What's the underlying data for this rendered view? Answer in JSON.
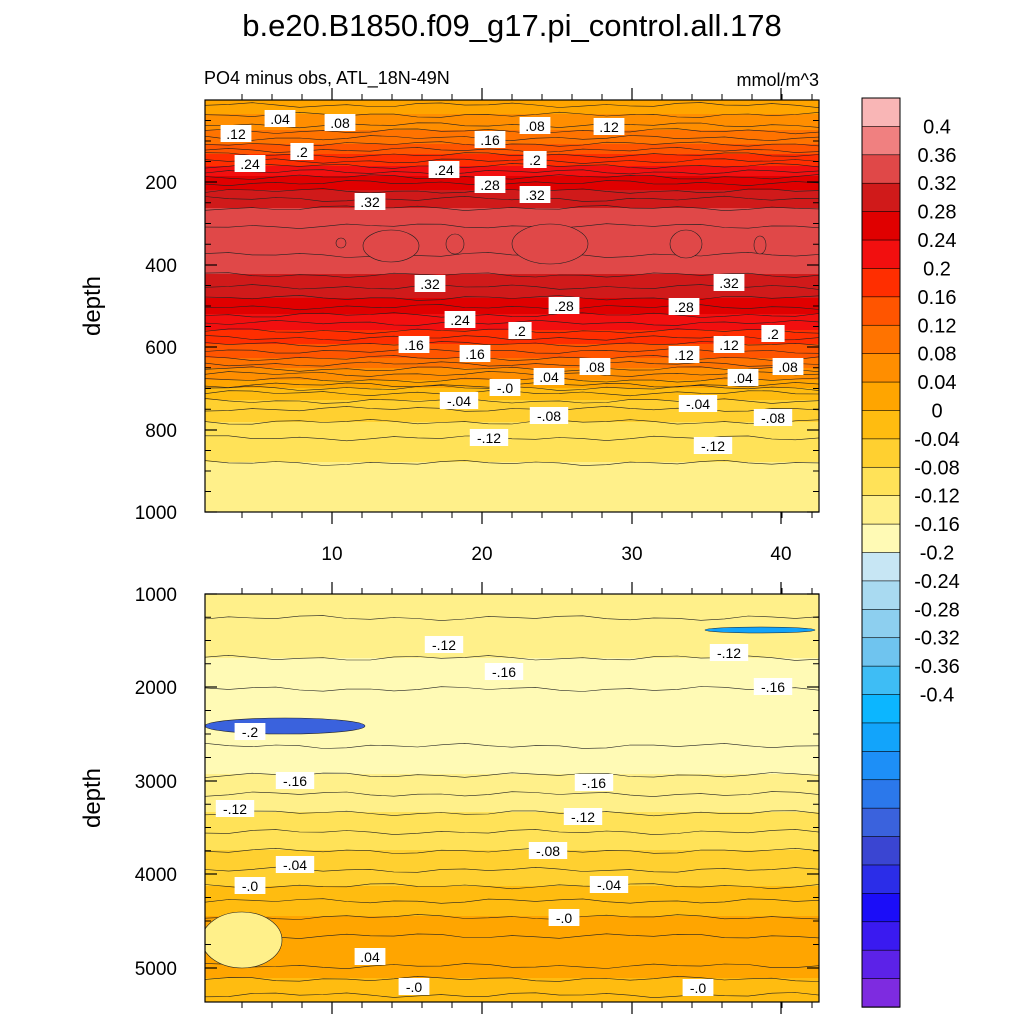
{
  "title": "b.e20.B1850.f09_g17.pi_control.all.178",
  "chart_data": [
    {
      "type": "heatmap",
      "panel": "upper",
      "subtitle_left": "PO4 minus obs, ATL_18N-49N",
      "subtitle_right": "mmol/m^3",
      "xlabel": "",
      "ylabel": "depth",
      "xlim": [
        1,
        43
      ],
      "ylim": [
        1000,
        0
      ],
      "xticks": [
        "10",
        "20",
        "30",
        "40"
      ],
      "yticks": [
        "200",
        "400",
        "600",
        "800",
        "1000"
      ],
      "depth_profile": [
        {
          "depth": 0,
          "value": 0.01
        },
        {
          "depth": 60,
          "value": 0.06
        },
        {
          "depth": 120,
          "value": 0.14
        },
        {
          "depth": 200,
          "value": 0.26
        },
        {
          "depth": 270,
          "value": 0.33
        },
        {
          "depth": 340,
          "value": 0.35
        },
        {
          "depth": 410,
          "value": 0.33
        },
        {
          "depth": 480,
          "value": 0.28
        },
        {
          "depth": 560,
          "value": 0.2
        },
        {
          "depth": 640,
          "value": 0.1
        },
        {
          "depth": 690,
          "value": 0.02
        },
        {
          "depth": 700,
          "value": -0.01
        },
        {
          "depth": 760,
          "value": -0.07
        },
        {
          "depth": 840,
          "value": -0.11
        },
        {
          "depth": 920,
          "value": -0.13
        },
        {
          "depth": 1000,
          "value": -0.13
        }
      ],
      "contour_labels": [
        ".04",
        ".12",
        ".08",
        ".16",
        ".08",
        ".12",
        ".24",
        ".2",
        ".24",
        ".2",
        ".28",
        ".32",
        ".32",
        ".32",
        ".32",
        ".28",
        ".28",
        ".24",
        ".2",
        ".2",
        ".16",
        ".12",
        ".16",
        ".12",
        ".08",
        ".08",
        ".04",
        ".04",
        "-.0",
        "-.04",
        "-.08",
        "-.04",
        "-.08",
        "-.12",
        "-.12"
      ]
    },
    {
      "type": "heatmap",
      "panel": "lower",
      "xlabel": "",
      "ylabel": "depth",
      "ylim": [
        5300,
        1000
      ],
      "yticks": [
        "1000",
        "2000",
        "3000",
        "4000",
        "5000"
      ],
      "depth_profile": [
        {
          "depth": 1000,
          "value": -0.13
        },
        {
          "depth": 1500,
          "value": -0.15
        },
        {
          "depth": 2000,
          "value": -0.18
        },
        {
          "depth": 2400,
          "value": -0.19
        },
        {
          "depth": 2800,
          "value": -0.17
        },
        {
          "depth": 3200,
          "value": -0.13
        },
        {
          "depth": 3600,
          "value": -0.09
        },
        {
          "depth": 4000,
          "value": -0.05
        },
        {
          "depth": 4300,
          "value": -0.01
        },
        {
          "depth": 4600,
          "value": 0.02
        },
        {
          "depth": 4850,
          "value": 0.03
        },
        {
          "depth": 5050,
          "value": 0.0
        },
        {
          "depth": 5300,
          "value": -0.03
        }
      ],
      "contour_labels": [
        "-.12",
        "-.12",
        "-.16",
        "-.16",
        "-.2",
        "-.16",
        "-.16",
        "-.12",
        "-.12",
        "-.08",
        "-.04",
        "-.04",
        "-.0",
        "-.0",
        ".04",
        "-.0",
        "-.0"
      ]
    }
  ],
  "colorbar": {
    "levels": [
      "0.4",
      "0.36",
      "0.32",
      "0.28",
      "0.24",
      "0.2",
      "0.16",
      "0.12",
      "0.08",
      "0.04",
      "0",
      "-0.04",
      "-0.08",
      "-0.12",
      "-0.16",
      "-0.2",
      "-0.24",
      "-0.28",
      "-0.32",
      "-0.36",
      "-0.4"
    ],
    "colors": [
      "#F9B6B6",
      "#F08080",
      "#E04848",
      "#D01A1A",
      "#E00000",
      "#F20F0F",
      "#FF2E00",
      "#FF5500",
      "#FF7300",
      "#FF8E00",
      "#FFA500",
      "#FFBC10",
      "#FFD030",
      "#FFE258",
      "#FFF08A",
      "#FFFAB5",
      "#C7E6F4",
      "#A9DAF1",
      "#8DCFEF",
      "#6FC4EF",
      "#3EBDF5",
      "#0CB6FF",
      "#12A4FB",
      "#1D8FF7",
      "#2B78EB",
      "#3A62DD",
      "#3A45D2",
      "#2B2DE8",
      "#1B0DF8",
      "#3A1AF0",
      "#5C22E8",
      "#7E2BE0"
    ]
  }
}
